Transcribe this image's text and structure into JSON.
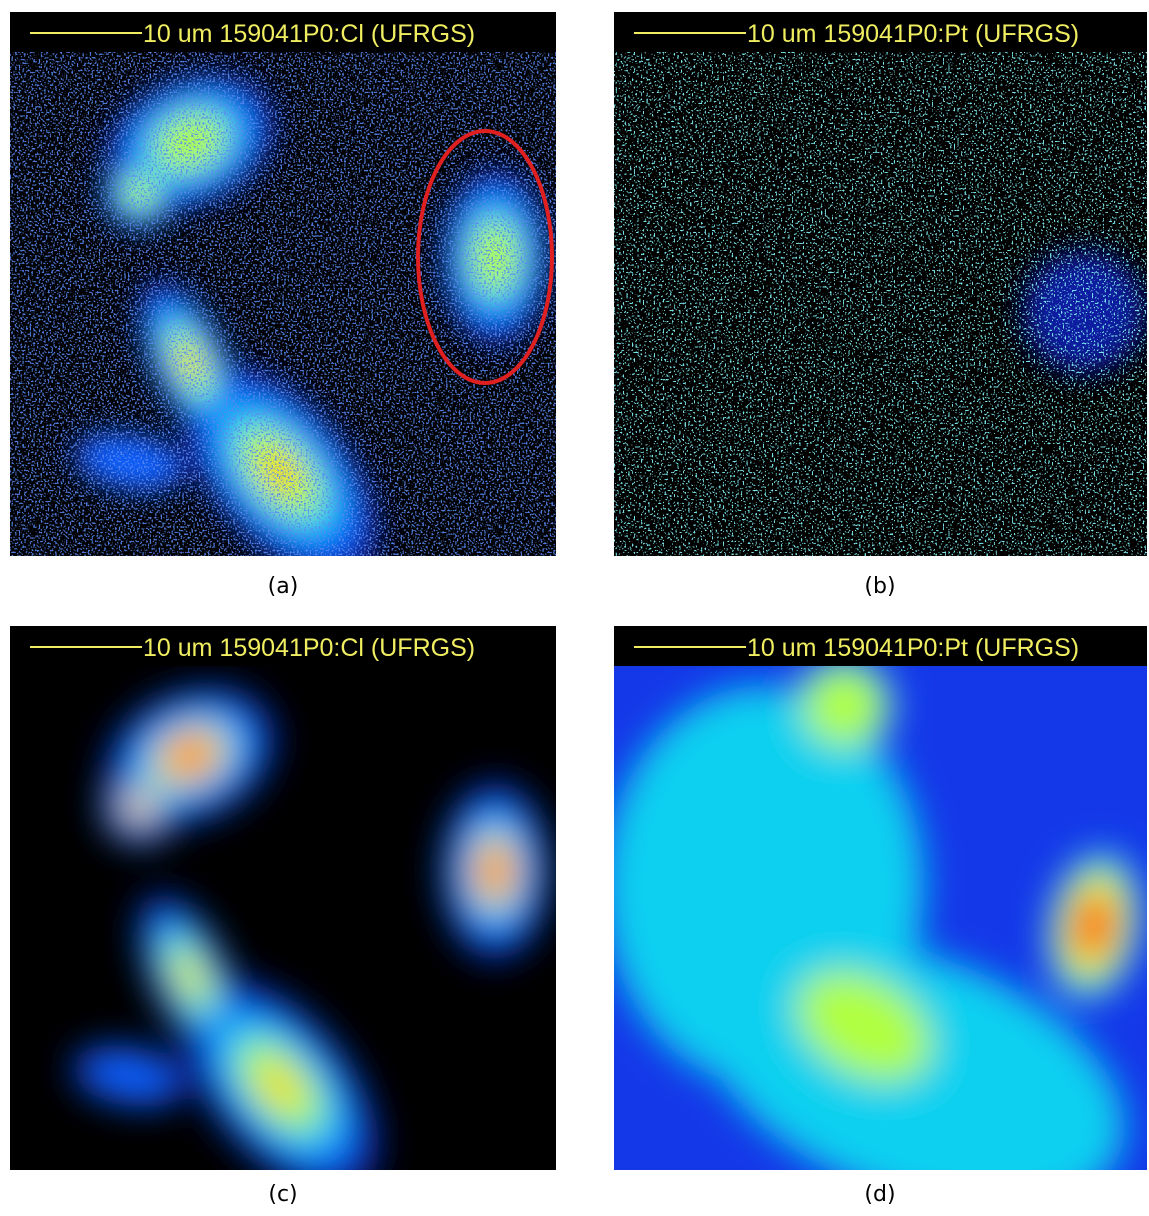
{
  "panels": [
    {
      "header": "10 um 159041P0:Cl  (UFRGS)",
      "caption": "(a)"
    },
    {
      "header": "10 um 159041P0:Pt  (UFRGS)",
      "caption": "(b)"
    },
    {
      "header": "10 um 159041P0:Cl  (UFRGS)",
      "caption": "(c)"
    },
    {
      "header": "10 um 159041P0:Pt  (UFRGS)",
      "caption": "(d)"
    }
  ]
}
